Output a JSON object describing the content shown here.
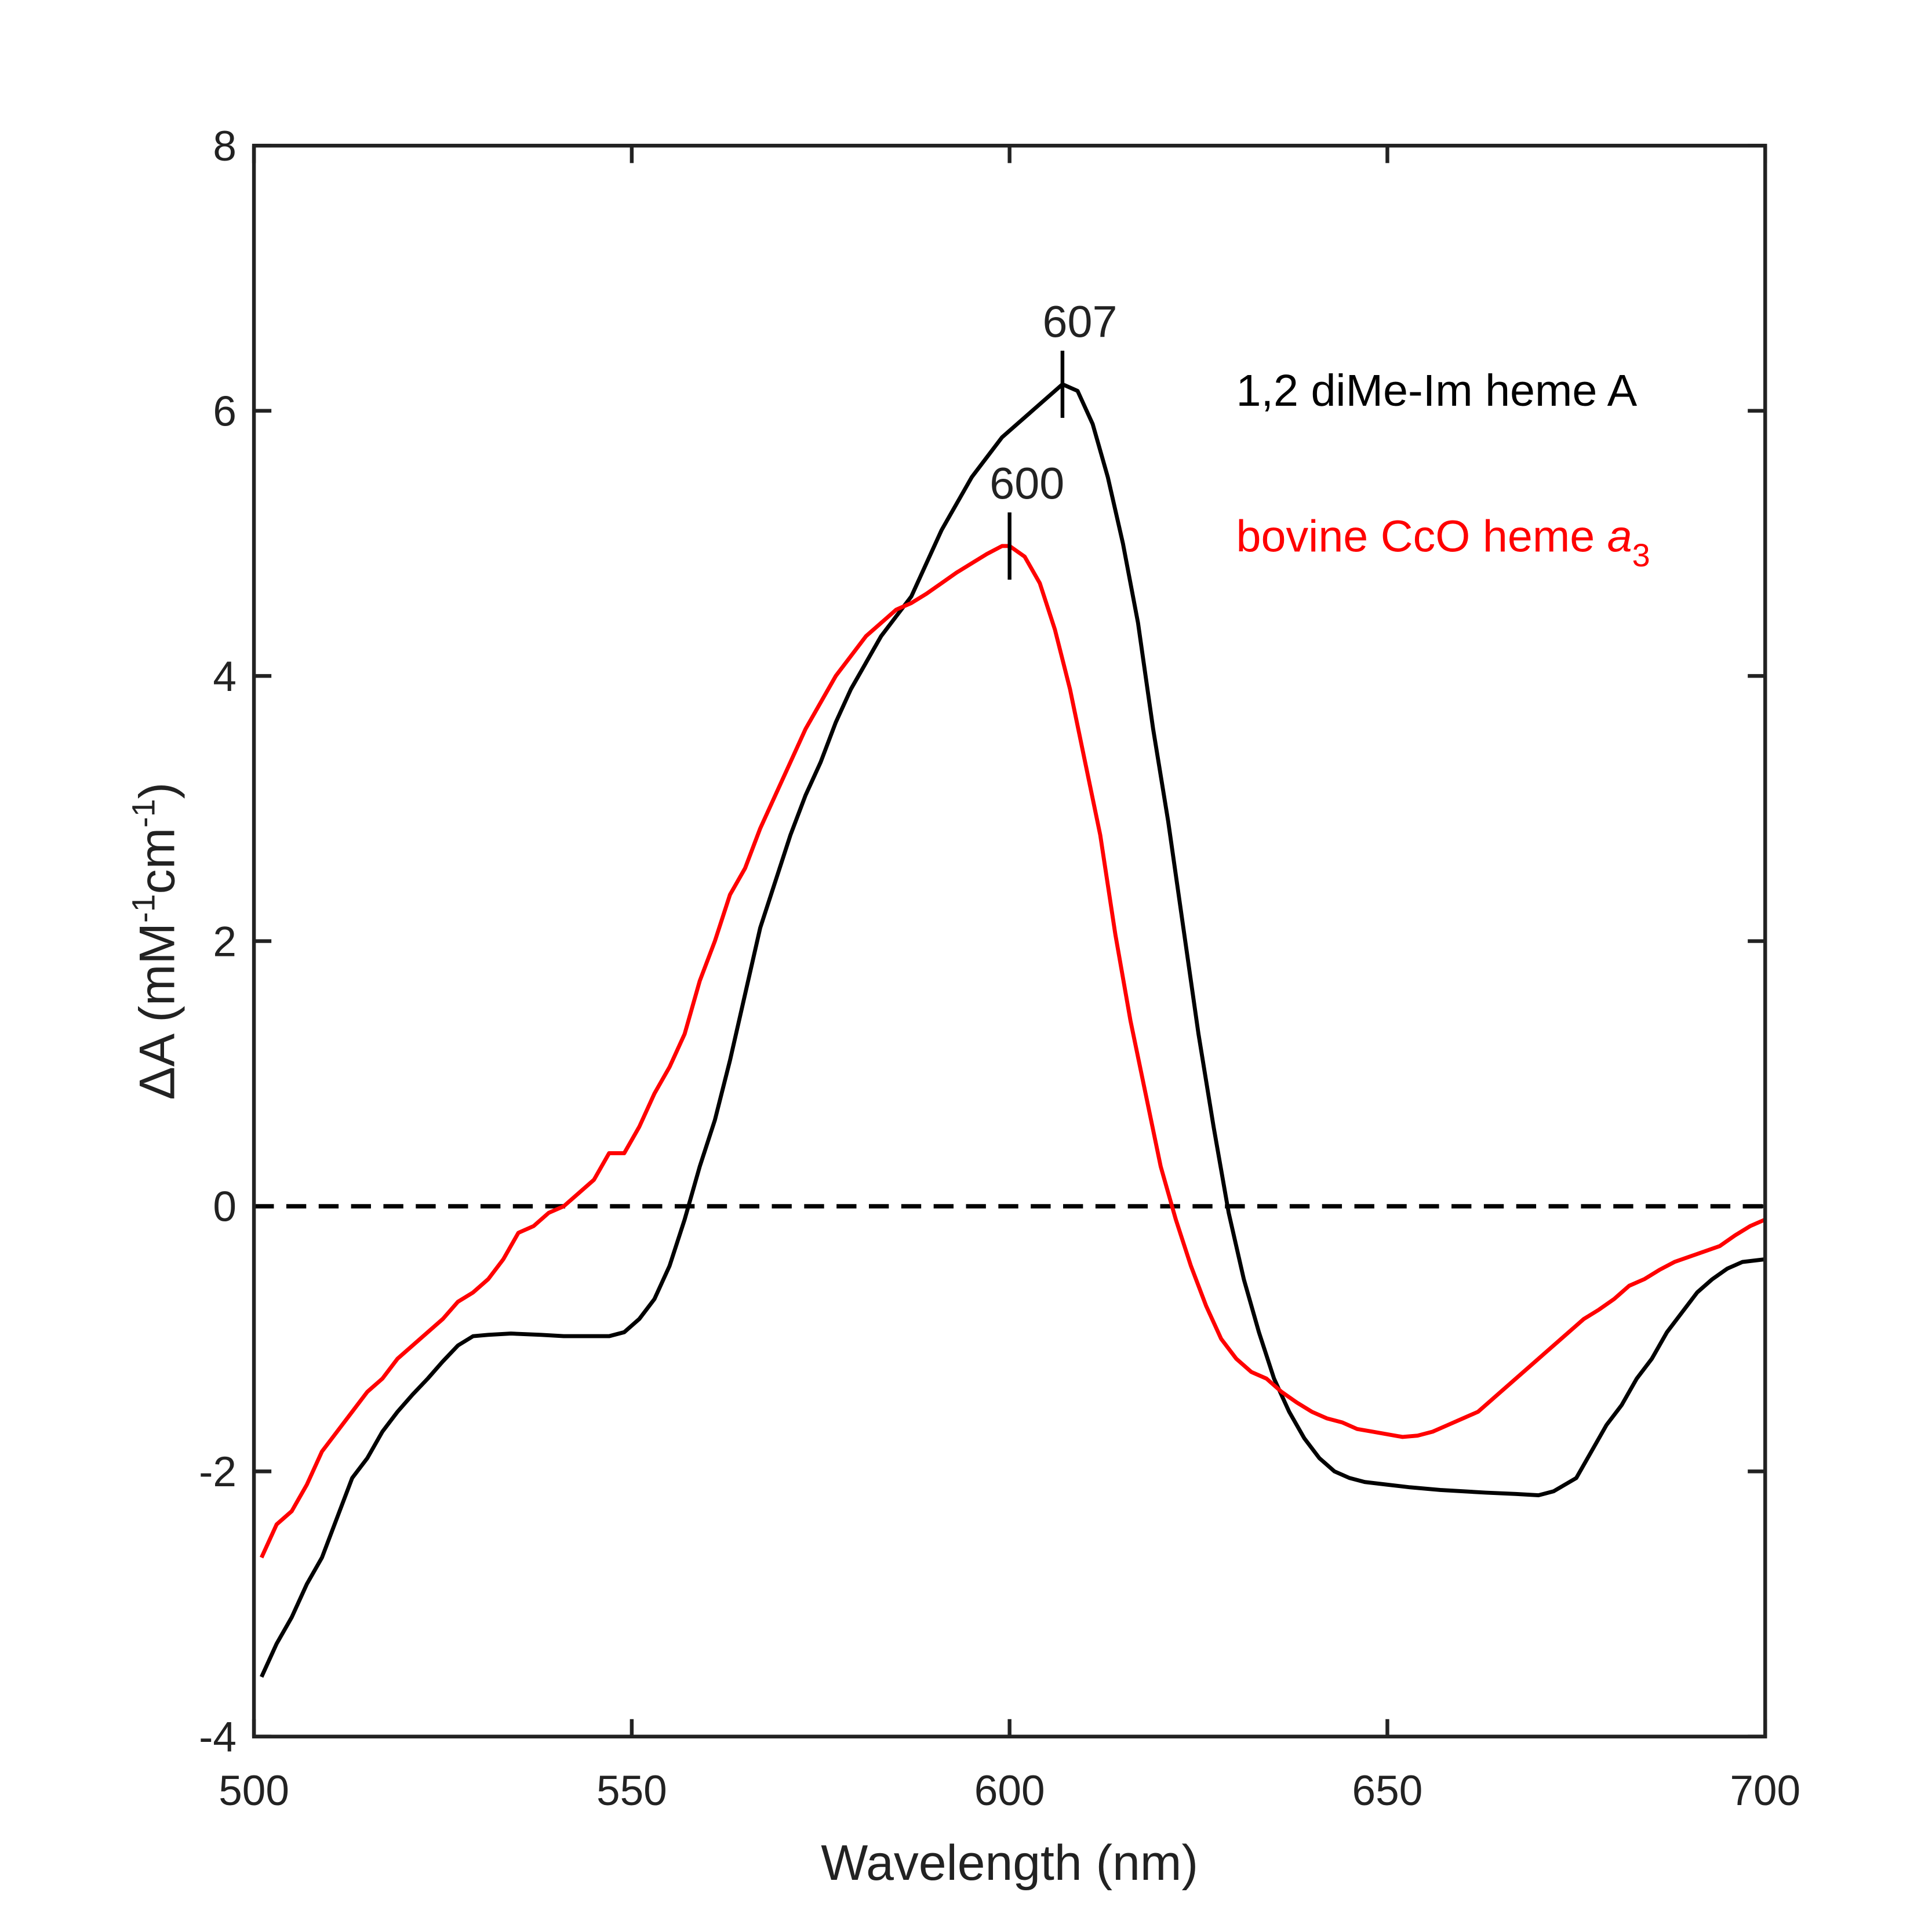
{
  "chart_data": {
    "type": "line",
    "xlabel": "Wavelength (nm)",
    "ylabel": [
      "ΔA (mM",
      "-1",
      "cm",
      "-1",
      ")"
    ],
    "xlim": [
      500,
      700
    ],
    "ylim": [
      -4,
      8
    ],
    "xticks": [
      500,
      550,
      600,
      650,
      700
    ],
    "yticks": [
      -4,
      -2,
      0,
      2,
      4,
      6,
      8
    ],
    "reference_line": {
      "y": 0,
      "style": "dashed",
      "color": "#000000"
    },
    "legend": "upper right",
    "series": [
      {
        "name": "1,2 diMe-Im heme A",
        "color": "#000000",
        "x": [
          501,
          503,
          505,
          507,
          509,
          511,
          513,
          515,
          517,
          519,
          521,
          523,
          525,
          527,
          529,
          531,
          534,
          538,
          541,
          545,
          547,
          549,
          551,
          553,
          555,
          557,
          559,
          561,
          563,
          565,
          567,
          569,
          571,
          573,
          575,
          577,
          579,
          581,
          583,
          585,
          587,
          589,
          591,
          593,
          595,
          597,
          599,
          601,
          603,
          605,
          607,
          609,
          611,
          613,
          615,
          617,
          619,
          621,
          623,
          625,
          627,
          629,
          631,
          633,
          635,
          637,
          639,
          641,
          643,
          645,
          647,
          650,
          653,
          657,
          660,
          663,
          667,
          670,
          672,
          675,
          677,
          679,
          681,
          683,
          685,
          687,
          689,
          691,
          693,
          695,
          697,
          700
        ],
        "values": [
          -3.55,
          -3.3,
          -3.1,
          -2.85,
          -2.65,
          -2.35,
          -2.05,
          -1.9,
          -1.7,
          -1.55,
          -1.42,
          -1.3,
          -1.17,
          -1.05,
          -0.98,
          -0.97,
          -0.96,
          -0.97,
          -0.98,
          -0.98,
          -0.98,
          -0.95,
          -0.85,
          -0.7,
          -0.45,
          -0.1,
          0.3,
          0.65,
          1.1,
          1.6,
          2.1,
          2.45,
          2.8,
          3.1,
          3.35,
          3.65,
          3.9,
          4.1,
          4.3,
          4.45,
          4.6,
          4.85,
          5.1,
          5.3,
          5.5,
          5.65,
          5.8,
          5.9,
          6.0,
          6.1,
          6.2,
          6.15,
          5.9,
          5.5,
          5.0,
          4.4,
          3.6,
          2.9,
          2.1,
          1.3,
          0.6,
          -0.05,
          -0.55,
          -0.95,
          -1.3,
          -1.55,
          -1.75,
          -1.9,
          -2.0,
          -2.05,
          -2.08,
          -2.1,
          -2.12,
          -2.14,
          -2.15,
          -2.16,
          -2.17,
          -2.18,
          -2.15,
          -2.05,
          -1.85,
          -1.65,
          -1.5,
          -1.3,
          -1.15,
          -0.95,
          -0.8,
          -0.65,
          -0.55,
          -0.47,
          -0.42,
          -0.4
        ]
      },
      {
        "name": "bovine CcO heme",
        "name_italic": "a",
        "name_subscript": "3",
        "color": "#ff0000",
        "x": [
          501,
          503,
          505,
          507,
          509,
          511,
          513,
          515,
          517,
          519,
          521,
          523,
          525,
          527,
          529,
          531,
          533,
          535,
          537,
          539,
          541,
          543,
          545,
          547,
          549,
          551,
          553,
          555,
          557,
          559,
          561,
          563,
          565,
          567,
          569,
          571,
          573,
          575,
          577,
          579,
          581,
          583,
          585,
          587,
          589,
          591,
          593,
          595,
          597,
          599,
          600,
          602,
          604,
          606,
          608,
          610,
          612,
          614,
          616,
          618,
          620,
          622,
          624,
          626,
          628,
          630,
          632,
          634,
          636,
          638,
          640,
          642,
          644,
          646,
          648,
          650,
          652,
          654,
          656,
          658,
          660,
          662,
          664,
          666,
          668,
          670,
          672,
          674,
          676,
          678,
          680,
          682,
          684,
          686,
          688,
          690,
          692,
          694,
          696,
          698,
          700
        ],
        "values": [
          -2.65,
          -2.4,
          -2.3,
          -2.1,
          -1.85,
          -1.7,
          -1.55,
          -1.4,
          -1.3,
          -1.15,
          -1.05,
          -0.95,
          -0.85,
          -0.72,
          -0.65,
          -0.55,
          -0.4,
          -0.2,
          -0.15,
          -0.05,
          0.0,
          0.1,
          0.2,
          0.4,
          0.4,
          0.6,
          0.85,
          1.05,
          1.3,
          1.7,
          2.0,
          2.35,
          2.55,
          2.85,
          3.1,
          3.35,
          3.6,
          3.8,
          4.0,
          4.15,
          4.3,
          4.4,
          4.5,
          4.55,
          4.62,
          4.7,
          4.78,
          4.85,
          4.92,
          4.98,
          4.98,
          4.9,
          4.7,
          4.35,
          3.9,
          3.35,
          2.8,
          2.05,
          1.4,
          0.85,
          0.3,
          -0.1,
          -0.45,
          -0.75,
          -1.0,
          -1.15,
          -1.25,
          -1.3,
          -1.4,
          -1.48,
          -1.55,
          -1.6,
          -1.63,
          -1.68,
          -1.7,
          -1.72,
          -1.74,
          -1.73,
          -1.7,
          -1.65,
          -1.6,
          -1.55,
          -1.45,
          -1.35,
          -1.25,
          -1.15,
          -1.05,
          -0.95,
          -0.85,
          -0.78,
          -0.7,
          -0.6,
          -0.55,
          -0.48,
          -0.42,
          -0.38,
          -0.34,
          -0.3,
          -0.22,
          -0.15,
          -0.1
        ]
      }
    ],
    "annotations": [
      {
        "label": "607",
        "x": 607,
        "y": 6.2
      },
      {
        "label": "600",
        "x": 600,
        "y": 4.98
      }
    ]
  }
}
